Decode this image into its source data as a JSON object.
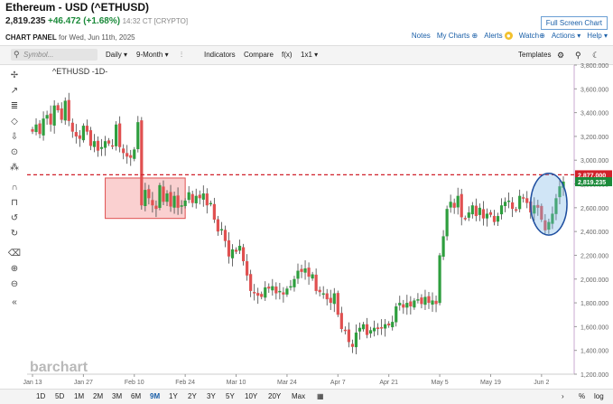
{
  "header": {
    "title": "Ethereum - USD (^ETHUSD)",
    "price": "2,819.235",
    "change": "+46.472 (+1.68%)",
    "time": "14:32 CT [CRYPTO]",
    "fullscreen_label": "Full Screen Chart"
  },
  "panel": {
    "label": "CHART PANEL",
    "date": "for Wed, Jun 11th, 2025"
  },
  "links": {
    "notes": "Notes",
    "my_charts": "My Charts",
    "alerts": "Alerts",
    "watch": "Watch",
    "actions": "Actions",
    "help": "Help"
  },
  "toolbar": {
    "search_placeholder": "Symbol...",
    "interval": "Daily",
    "range": "9-Month",
    "indicators": "Indicators",
    "compare": "Compare",
    "fx": "f(x)",
    "layout": "1x1",
    "templates": "Templates"
  },
  "chart_legend": {
    "symbol": "^ETHUSD -1D-"
  },
  "watermark": "barchart",
  "colors": {
    "up": "#2e9e3e",
    "down": "#e05050",
    "dash": "#d0202a",
    "price_tag": "#1b8a3a"
  },
  "ranges": [
    "1D",
    "5D",
    "1M",
    "2M",
    "3M",
    "6M",
    "9M",
    "1Y",
    "2Y",
    "3Y",
    "5Y",
    "10Y",
    "20Y",
    "Max"
  ],
  "selected_range": "9M",
  "bottom_right": {
    "pct": "%",
    "log": "log"
  },
  "chart_data": {
    "type": "candlestick",
    "y_ticks": [
      1200,
      1400,
      1600,
      1800,
      2000,
      2200,
      2400,
      2600,
      2800,
      3000,
      3200,
      3400,
      3600,
      3800
    ],
    "y_tick_labels": [
      "1,200.000",
      "1,400.000",
      "1,600.000",
      "1,800.000",
      "2,000.000",
      "2,200.000",
      "2,400.000",
      "2,600.000",
      "2,800.000",
      "3,000.000",
      "3,200.000",
      "3,400.000",
      "3,600.000",
      "3,800.000"
    ],
    "ylim": [
      1200,
      3800
    ],
    "x_labels": [
      "Jan 13",
      "Jan 27",
      "Feb 10",
      "Feb 24",
      "Mar 10",
      "Mar 24",
      "Apr 7",
      "Apr 21",
      "May 5",
      "May 19",
      "Jun 2"
    ],
    "x_label_index": [
      0,
      14,
      28,
      42,
      56,
      70,
      84,
      98,
      112,
      126,
      140
    ],
    "dashed_level": 2877,
    "dashed_label": "2,877.000",
    "last_label": "2,819.235",
    "last_value": 2819,
    "annotation_box": {
      "x_from": 20,
      "x_to": 42,
      "y_low": 2510,
      "y_high": 2850
    },
    "annotation_ellipse": {
      "x_center": 142,
      "y_center": 2630,
      "x_halfwidth": 5,
      "y_halfwidth": 260
    },
    "closes": [
      3240,
      3300,
      3220,
      3350,
      3380,
      3300,
      3460,
      3420,
      3340,
      3500,
      3330,
      3240,
      3200,
      3180,
      3290,
      3240,
      3120,
      3160,
      3080,
      3110,
      3160,
      3140,
      3120,
      3300,
      3110,
      3060,
      3030,
      3020,
      3090,
      3320,
      2620,
      2750,
      2680,
      2620,
      2590,
      2790,
      2650,
      2720,
      2610,
      2700,
      2600,
      2620,
      2660,
      2730,
      2640,
      2700,
      2680,
      2720,
      2620,
      2640,
      2500,
      2400,
      2420,
      2320,
      2190,
      2250,
      2230,
      2280,
      2150,
      2030,
      1900,
      1880,
      1860,
      1850,
      1930,
      1920,
      1940,
      1880,
      1900,
      1870,
      1920,
      1940,
      2000,
      2070,
      2060,
      2090,
      2020,
      2040,
      1900,
      1890,
      1880,
      1830,
      1800,
      1880,
      1700,
      1580,
      1570,
      1470,
      1430,
      1550,
      1590,
      1620,
      1530,
      1570,
      1590,
      1580,
      1590,
      1620,
      1610,
      1640,
      1770,
      1800,
      1760,
      1800,
      1770,
      1820,
      1830,
      1790,
      1850,
      1800,
      1820,
      1790,
      2200,
      2360,
      2590,
      2650,
      2600,
      2700,
      2520,
      2510,
      2560,
      2620,
      2530,
      2600,
      2510,
      2550,
      2540,
      2480,
      2530,
      2620,
      2650,
      2660,
      2590,
      2580,
      2700,
      2680,
      2640,
      2560,
      2620,
      2600,
      2500,
      2410,
      2480,
      2550,
      2680,
      2780,
      2820
    ]
  }
}
